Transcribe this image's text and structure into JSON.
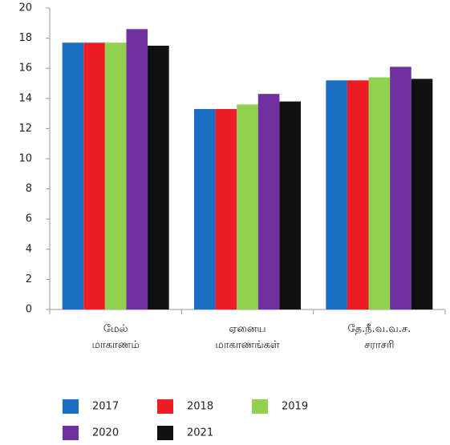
{
  "chart_data": {
    "type": "bar",
    "categories": [
      "மேல் மாகாணம்",
      "ஏனைய மாகாணங்கள்",
      "தே.நீ.வ.வ.ச. சராசரி"
    ],
    "series": [
      {
        "name": "2017",
        "color": "#1a6fc4",
        "values": [
          17.7,
          13.3,
          15.2
        ]
      },
      {
        "name": "2018",
        "color": "#ee1c25",
        "values": [
          17.7,
          13.3,
          15.2
        ]
      },
      {
        "name": "2019",
        "color": "#92d050",
        "values": [
          17.7,
          13.6,
          15.4
        ]
      },
      {
        "name": "2020",
        "color": "#7030a0",
        "values": [
          18.6,
          14.3,
          16.1
        ]
      },
      {
        "name": "2021",
        "color": "#111111",
        "values": [
          17.5,
          13.8,
          15.3
        ]
      }
    ],
    "ylim": [
      0,
      20
    ],
    "yticks": [
      0,
      2,
      4,
      6,
      8,
      10,
      12,
      14,
      16,
      18,
      20
    ],
    "grid": false
  }
}
